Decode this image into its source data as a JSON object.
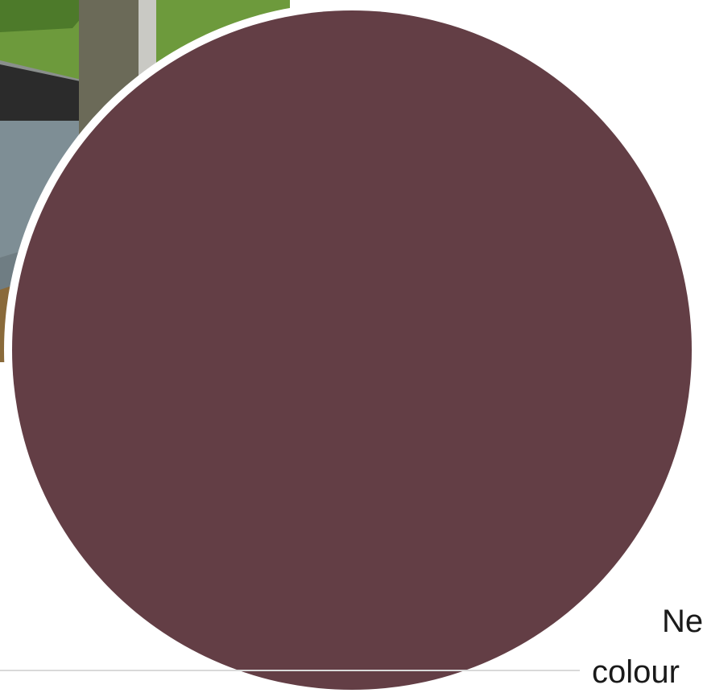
{
  "text_lines": [
    "Ne",
    "colour"
  ]
}
